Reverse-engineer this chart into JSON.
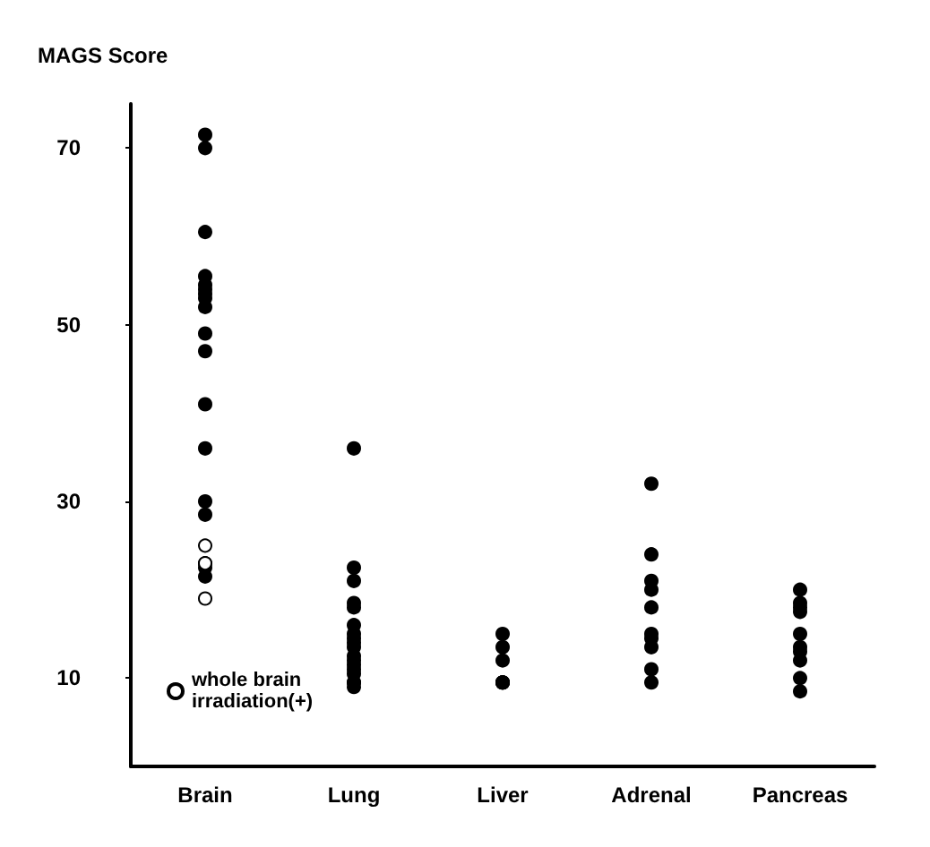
{
  "chart_data": {
    "type": "scatter",
    "title": "MAGS Score",
    "categories": [
      "Brain",
      "Lung",
      "Liver",
      "Adrenal",
      "Pancreas"
    ],
    "ylim": [
      0,
      75
    ],
    "yticks": [
      10,
      30,
      50,
      70
    ],
    "grid": false,
    "legend": "bottom left",
    "marker": "circle",
    "series": [
      {
        "color": "#000000",
        "x": [
          "Brain",
          "Brain",
          "Brain",
          "Brain",
          "Brain",
          "Brain",
          "Brain",
          "Brain",
          "Brain",
          "Brain",
          "Brain",
          "Brain",
          "Brain",
          "Brain",
          "Brain",
          "Brain",
          "Brain",
          "Brain",
          "Lung",
          "Lung",
          "Lung",
          "Lung",
          "Lung",
          "Lung",
          "Lung",
          "Lung",
          "Lung",
          "Lung",
          "Lung",
          "Lung",
          "Lung",
          "Lung",
          "Lung",
          "Lung",
          "Lung",
          "Lung",
          "Liver",
          "Liver",
          "Liver",
          "Liver",
          "Liver",
          "Liver",
          "Liver",
          "Adrenal",
          "Adrenal",
          "Adrenal",
          "Adrenal",
          "Adrenal",
          "Adrenal",
          "Adrenal",
          "Adrenal",
          "Adrenal",
          "Adrenal",
          "Pancreas",
          "Pancreas",
          "Pancreas",
          "Pancreas",
          "Pancreas",
          "Pancreas",
          "Pancreas",
          "Pancreas",
          "Pancreas",
          "Pancreas"
        ],
        "values": [
          71.5,
          70,
          60.5,
          55.5,
          54.5,
          54,
          53.5,
          53,
          52,
          49,
          47,
          41,
          36,
          30,
          28.5,
          23,
          22.5,
          21.5,
          36,
          22.5,
          21,
          18.5,
          18,
          16,
          15,
          14.5,
          14,
          13.5,
          12.5,
          12,
          11.5,
          11,
          10.5,
          9.5,
          9,
          9.5,
          15,
          13.5,
          12,
          9.5,
          9.5,
          9.5,
          9.5,
          32,
          24,
          21,
          20,
          18,
          15,
          14.5,
          13.5,
          11,
          9.5,
          20,
          18.5,
          18,
          17.5,
          15,
          13.5,
          13,
          12,
          10,
          8.5
        ]
      },
      {
        "name": "whole brain irradiation(+)",
        "color": "#ffffff",
        "x": [
          "Brain",
          "Brain",
          "Brain"
        ],
        "values": [
          25,
          23,
          19
        ]
      }
    ]
  }
}
